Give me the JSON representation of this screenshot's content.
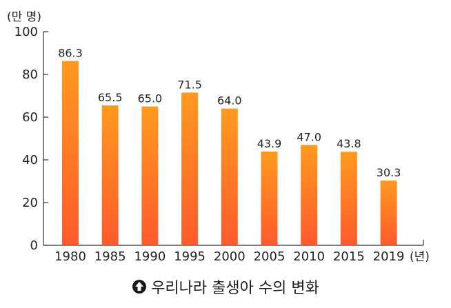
{
  "chart_data": {
    "type": "bar",
    "y_unit_label": "(만 명)",
    "x_unit_label": "(년)",
    "categories": [
      "1980",
      "1985",
      "1990",
      "1995",
      "2000",
      "2005",
      "2010",
      "2015",
      "2019"
    ],
    "values": [
      86.3,
      65.5,
      65.0,
      71.5,
      64.0,
      43.9,
      47.0,
      43.8,
      30.3
    ],
    "value_labels": [
      "86.3",
      "65.5",
      "65.0",
      "71.5",
      "64.0",
      "43.9",
      "47.0",
      "43.8",
      "30.3"
    ],
    "ylim": [
      0,
      100
    ],
    "yticks": [
      0,
      20,
      40,
      60,
      80,
      100
    ],
    "grid": false,
    "colors": {
      "bar_top": "#ff9a1f",
      "bar_bottom": "#ff5a2c",
      "axis": "#333333"
    }
  },
  "caption": {
    "icon": "up-arrow-circle-icon",
    "text": "우리나라 출생아 수의 변화"
  }
}
